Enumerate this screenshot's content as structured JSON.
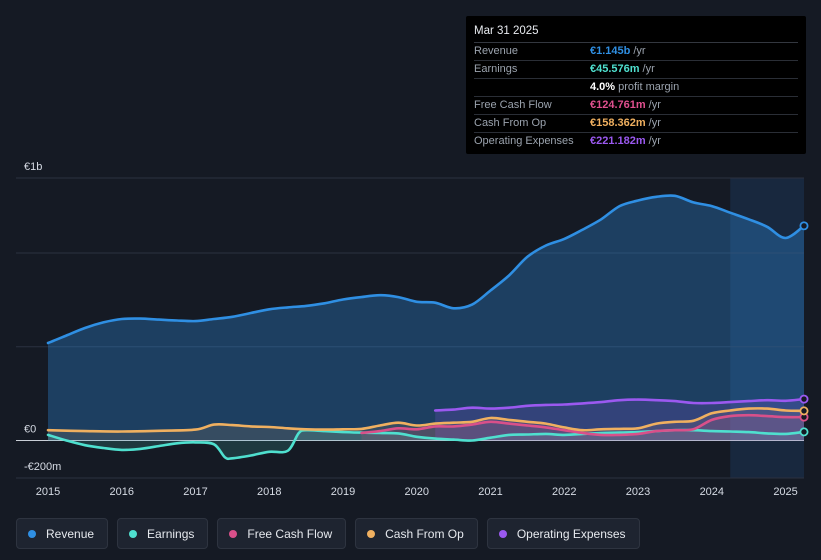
{
  "tooltip": {
    "date": "Mar 31 2025",
    "rows": [
      {
        "label": "Revenue",
        "value": "€1.145b",
        "unit": "/yr",
        "color": "#2f8fe3"
      },
      {
        "label": "Earnings",
        "value": "€45.576m",
        "unit": "/yr",
        "color": "#4fe0cf"
      },
      {
        "label": "",
        "value": "4.0%",
        "unit": "profit margin",
        "color": "#ffffff"
      },
      {
        "label": "Free Cash Flow",
        "value": "€124.761m",
        "unit": "/yr",
        "color": "#e0508f"
      },
      {
        "label": "Cash From Op",
        "value": "€158.362m",
        "unit": "/yr",
        "color": "#f0b060"
      },
      {
        "label": "Operating Expenses",
        "value": "€221.182m",
        "unit": "/yr",
        "color": "#9b59f0"
      }
    ]
  },
  "legend": [
    {
      "label": "Revenue",
      "color": "#2f8fe3"
    },
    {
      "label": "Earnings",
      "color": "#4fe0cf"
    },
    {
      "label": "Free Cash Flow",
      "color": "#d9508a"
    },
    {
      "label": "Cash From Op",
      "color": "#f0b060"
    },
    {
      "label": "Operating Expenses",
      "color": "#9b59f0"
    }
  ],
  "chart_data": {
    "type": "area",
    "title": "",
    "xlabel": "",
    "ylabel": "",
    "xlim": [
      2015.0,
      2025.25
    ],
    "ylim": [
      -200,
      1400
    ],
    "y_ticks": [
      {
        "value": 1400,
        "label": "€1b"
      },
      {
        "value": 0,
        "label": "€0"
      },
      {
        "value": -200,
        "label": "-€200m"
      }
    ],
    "x_ticks": [
      {
        "value": 2015,
        "label": "2015"
      },
      {
        "value": 2016,
        "label": "2016"
      },
      {
        "value": 2017,
        "label": "2017"
      },
      {
        "value": 2018,
        "label": "2018"
      },
      {
        "value": 2019,
        "label": "2019"
      },
      {
        "value": 2020,
        "label": "2020"
      },
      {
        "value": 2021,
        "label": "2021"
      },
      {
        "value": 2022,
        "label": "2022"
      },
      {
        "value": 2023,
        "label": "2023"
      },
      {
        "value": 2024,
        "label": "2024"
      },
      {
        "value": 2025,
        "label": "2025"
      }
    ],
    "highlight_from": 2024.25,
    "series": [
      {
        "name": "Revenue",
        "color": "#2f8fe3",
        "points": [
          [
            2015,
            520
          ],
          [
            2015.25,
            560
          ],
          [
            2015.5,
            600
          ],
          [
            2015.75,
            630
          ],
          [
            2016,
            648
          ],
          [
            2016.25,
            650
          ],
          [
            2016.5,
            645
          ],
          [
            2016.75,
            640
          ],
          [
            2017,
            637
          ],
          [
            2017.25,
            648
          ],
          [
            2017.5,
            660
          ],
          [
            2017.75,
            680
          ],
          [
            2018,
            700
          ],
          [
            2018.25,
            710
          ],
          [
            2018.5,
            718
          ],
          [
            2018.75,
            732
          ],
          [
            2019,
            752
          ],
          [
            2019.25,
            765
          ],
          [
            2019.5,
            775
          ],
          [
            2019.75,
            765
          ],
          [
            2020,
            740
          ],
          [
            2020.25,
            735
          ],
          [
            2020.5,
            705
          ],
          [
            2020.75,
            725
          ],
          [
            2021,
            800
          ],
          [
            2021.25,
            880
          ],
          [
            2021.5,
            980
          ],
          [
            2021.75,
            1040
          ],
          [
            2022,
            1075
          ],
          [
            2022.25,
            1125
          ],
          [
            2022.5,
            1180
          ],
          [
            2022.75,
            1250
          ],
          [
            2023,
            1280
          ],
          [
            2023.25,
            1300
          ],
          [
            2023.5,
            1305
          ],
          [
            2023.75,
            1270
          ],
          [
            2024,
            1250
          ],
          [
            2024.25,
            1215
          ],
          [
            2024.5,
            1180
          ],
          [
            2024.75,
            1140
          ],
          [
            2025,
            1080
          ],
          [
            2025.25,
            1145
          ]
        ]
      },
      {
        "name": "Earnings",
        "color": "#4fe0cf",
        "points": [
          [
            2015,
            30
          ],
          [
            2015.25,
            0
          ],
          [
            2015.5,
            -25
          ],
          [
            2015.75,
            -40
          ],
          [
            2016,
            -50
          ],
          [
            2016.25,
            -45
          ],
          [
            2016.5,
            -30
          ],
          [
            2016.75,
            -15
          ],
          [
            2017,
            -10
          ],
          [
            2017.25,
            -20
          ],
          [
            2017.4,
            -90
          ],
          [
            2017.5,
            -95
          ],
          [
            2017.75,
            -80
          ],
          [
            2018,
            -60
          ],
          [
            2018.25,
            -55
          ],
          [
            2018.4,
            40
          ],
          [
            2018.5,
            55
          ],
          [
            2018.75,
            50
          ],
          [
            2019,
            45
          ],
          [
            2019.25,
            42
          ],
          [
            2019.5,
            40
          ],
          [
            2019.75,
            38
          ],
          [
            2020,
            20
          ],
          [
            2020.25,
            10
          ],
          [
            2020.5,
            5
          ],
          [
            2020.75,
            0
          ],
          [
            2021,
            15
          ],
          [
            2021.25,
            30
          ],
          [
            2021.5,
            32
          ],
          [
            2021.75,
            35
          ],
          [
            2022,
            30
          ],
          [
            2022.25,
            35
          ],
          [
            2022.5,
            40
          ],
          [
            2022.75,
            42
          ],
          [
            2023,
            45
          ],
          [
            2023.25,
            50
          ],
          [
            2023.5,
            55
          ],
          [
            2023.75,
            55
          ],
          [
            2024,
            50
          ],
          [
            2024.25,
            48
          ],
          [
            2024.5,
            45
          ],
          [
            2024.75,
            38
          ],
          [
            2025,
            35
          ],
          [
            2025.25,
            46
          ]
        ]
      },
      {
        "name": "Free Cash Flow",
        "color": "#d9508a",
        "points": [
          [
            2019.25,
            40
          ],
          [
            2019.5,
            50
          ],
          [
            2019.75,
            65
          ],
          [
            2020,
            60
          ],
          [
            2020.25,
            75
          ],
          [
            2020.5,
            75
          ],
          [
            2020.75,
            85
          ],
          [
            2021,
            100
          ],
          [
            2021.25,
            90
          ],
          [
            2021.5,
            80
          ],
          [
            2021.75,
            70
          ],
          [
            2022,
            55
          ],
          [
            2022.25,
            40
          ],
          [
            2022.5,
            30
          ],
          [
            2022.75,
            30
          ],
          [
            2023,
            35
          ],
          [
            2023.25,
            50
          ],
          [
            2023.5,
            55
          ],
          [
            2023.75,
            60
          ],
          [
            2024,
            110
          ],
          [
            2024.25,
            130
          ],
          [
            2024.5,
            135
          ],
          [
            2024.75,
            130
          ],
          [
            2025,
            125
          ],
          [
            2025.25,
            125
          ]
        ]
      },
      {
        "name": "Cash From Op",
        "color": "#f0b060",
        "points": [
          [
            2015,
            55
          ],
          [
            2015.5,
            50
          ],
          [
            2016,
            48
          ],
          [
            2016.5,
            52
          ],
          [
            2017,
            58
          ],
          [
            2017.25,
            85
          ],
          [
            2017.5,
            82
          ],
          [
            2017.75,
            75
          ],
          [
            2018,
            72
          ],
          [
            2018.25,
            65
          ],
          [
            2018.5,
            60
          ],
          [
            2018.75,
            58
          ],
          [
            2019,
            60
          ],
          [
            2019.25,
            62
          ],
          [
            2019.5,
            80
          ],
          [
            2019.75,
            95
          ],
          [
            2020,
            80
          ],
          [
            2020.25,
            90
          ],
          [
            2020.5,
            95
          ],
          [
            2020.75,
            100
          ],
          [
            2021,
            120
          ],
          [
            2021.25,
            110
          ],
          [
            2021.5,
            100
          ],
          [
            2021.75,
            90
          ],
          [
            2022,
            70
          ],
          [
            2022.25,
            55
          ],
          [
            2022.5,
            60
          ],
          [
            2022.75,
            62
          ],
          [
            2023,
            65
          ],
          [
            2023.25,
            90
          ],
          [
            2023.5,
            100
          ],
          [
            2023.75,
            105
          ],
          [
            2024,
            145
          ],
          [
            2024.25,
            160
          ],
          [
            2024.5,
            170
          ],
          [
            2024.75,
            170
          ],
          [
            2025,
            160
          ],
          [
            2025.25,
            158
          ]
        ]
      },
      {
        "name": "Operating Expenses",
        "color": "#9b59f0",
        "points": [
          [
            2020.25,
            160
          ],
          [
            2020.5,
            165
          ],
          [
            2020.75,
            175
          ],
          [
            2021,
            170
          ],
          [
            2021.25,
            175
          ],
          [
            2021.5,
            185
          ],
          [
            2021.75,
            190
          ],
          [
            2022,
            192
          ],
          [
            2022.25,
            198
          ],
          [
            2022.5,
            205
          ],
          [
            2022.75,
            215
          ],
          [
            2023,
            218
          ],
          [
            2023.25,
            215
          ],
          [
            2023.5,
            210
          ],
          [
            2023.75,
            200
          ],
          [
            2024,
            200
          ],
          [
            2024.25,
            205
          ],
          [
            2024.5,
            210
          ],
          [
            2024.75,
            215
          ],
          [
            2025,
            212
          ],
          [
            2025.25,
            221
          ]
        ]
      }
    ]
  }
}
